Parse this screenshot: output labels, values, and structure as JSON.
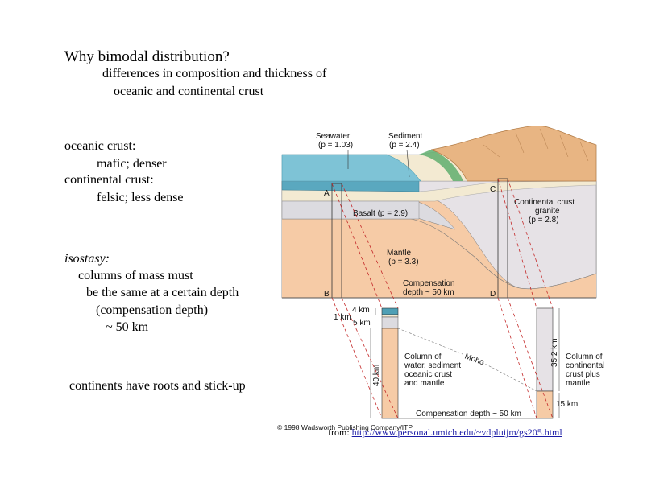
{
  "slide": {
    "title": "Why bimodal distribution?",
    "subtitle_lines": [
      "differences in composition and thickness of",
      "oceanic and continental crust"
    ],
    "oceanic_label": "oceanic crust:",
    "oceanic_desc": "mafic; denser",
    "continental_label": "continental crust:",
    "continental_desc": "felsic; less dense",
    "isostasy_term": "isostasy:",
    "isostasy_lines": [
      "columns of mass must",
      "be the same at a certain depth",
      "(compensation depth)",
      "~ 50 km"
    ],
    "roots_text": "continents have roots and stick-up"
  },
  "diagram": {
    "labels": {
      "seawater": "Seawater",
      "seawater_density": "(p = 1.03)",
      "sediment": "Sediment",
      "sediment_density": "(p = 2.4)",
      "basalt": "Basalt (p = 2.9)",
      "mantle": "Mantle",
      "mantle_density": "(p = 3.3)",
      "continental_crust": "Continental crust",
      "granite": "granite",
      "granite_density": "(p = 2.8)",
      "compensation": "Compensation",
      "compensation_depth": "depth ~ 50 km",
      "point_a": "A",
      "point_b": "B",
      "point_c": "C",
      "point_d": "D",
      "km4": "4 km",
      "km1": "1 km",
      "km5": "5 km",
      "km40": "40 km",
      "km35": "35.2 km",
      "km15": "15 km",
      "moho": "Moho",
      "col1_l1": "Column of",
      "col1_l2": "water, sediment",
      "col1_l3": "oceanic crust",
      "col1_l4": "and mantle",
      "col2_l1": "Column of",
      "col2_l2": "continental",
      "col2_l3": "crust plus",
      "col2_l4": "mantle",
      "comp_bottom": "Compensation depth ~ 50 km",
      "copyright": "© 1998 Wadsworth Publishing Company/ITP"
    },
    "colors": {
      "water": "#7ec3d6",
      "water_dark": "#4e9fb5",
      "sediment": "#f3ead2",
      "vegetation": "#5fae6e",
      "mountain": "#e8b583",
      "basalt": "#dcdbe0",
      "continental": "#e6e2e6",
      "mantle": "#f6cba6",
      "guide_red": "#c42a2a"
    }
  },
  "source": {
    "prefix": "from:",
    "url": "http://www.personal.umich.edu/~vdpluijm/gs205.html"
  }
}
